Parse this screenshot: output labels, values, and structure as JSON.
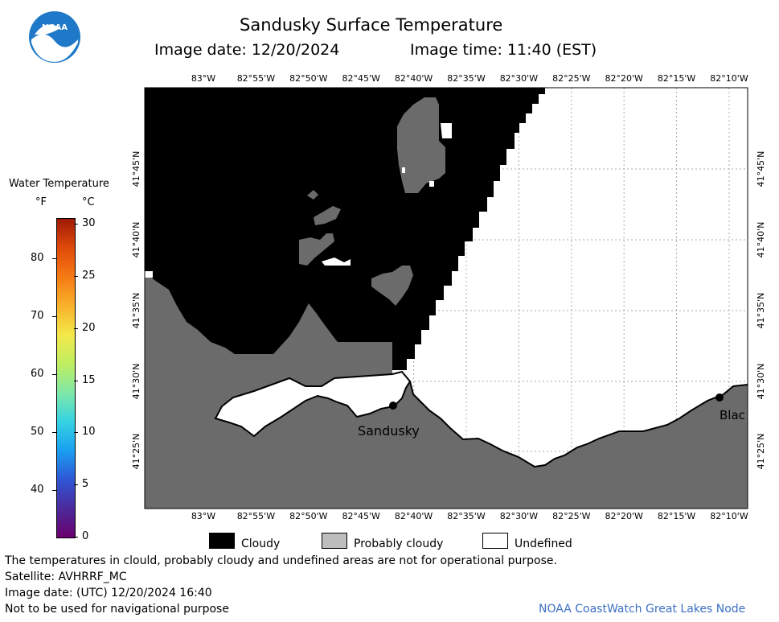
{
  "header": {
    "title": "Sandusky Surface Temperature",
    "image_date_text": "Image date: 12/20/2024",
    "image_time_text": "Image time: 11:40 (EST)",
    "logo_text": "NOAA"
  },
  "map": {
    "lon_labels": [
      "83°W",
      "82°55'W",
      "82°50'W",
      "82°45'W",
      "82°40'W",
      "82°35'W",
      "82°30'W",
      "82°25'W",
      "82°20'W",
      "82°15'W",
      "82°10'W"
    ],
    "lat_labels": [
      "41°45'N",
      "41°40'N",
      "41°35'N",
      "41°30'N",
      "41°25'N"
    ],
    "city_labels": {
      "sandusky": "Sandusky",
      "blac": "Blac"
    }
  },
  "colorbar": {
    "title": "Water Temperature",
    "unit_f": "°F",
    "unit_c": "°C",
    "f_ticks": [
      "80",
      "70",
      "60",
      "50",
      "40"
    ],
    "c_ticks": [
      "30",
      "25",
      "20",
      "15",
      "10",
      "5",
      "0"
    ],
    "colors": [
      "#6a006e",
      "#4b2a9a",
      "#2f56d6",
      "#1a9ff0",
      "#35d3e3",
      "#7fe8a8",
      "#bfee60",
      "#f4e84a",
      "#f8b12a",
      "#f57a14",
      "#e04a0a",
      "#9e1a06"
    ]
  },
  "legend": {
    "cloudy": "Cloudy",
    "probably_cloudy": "Probably cloudy",
    "undefined": "Undefined"
  },
  "footer": {
    "disclaimer": "The temperatures in clould, probably cloudy and undefined areas are not for operational purpose.",
    "satellite": "Satellite: AVHRRF_MC",
    "utc_date": "Image date: (UTC) 12/20/2024  16:40",
    "nav_warning": "Not to be used for navigational purpose",
    "credit": "NOAA CoastWatch Great Lakes Node"
  },
  "colors": {
    "cloudy": "#000000",
    "probably_cloudy": "#6b6b6b",
    "undefined": "#ffffff",
    "credit": "#3c6fc4",
    "logo_blue": "#1f79c8"
  }
}
